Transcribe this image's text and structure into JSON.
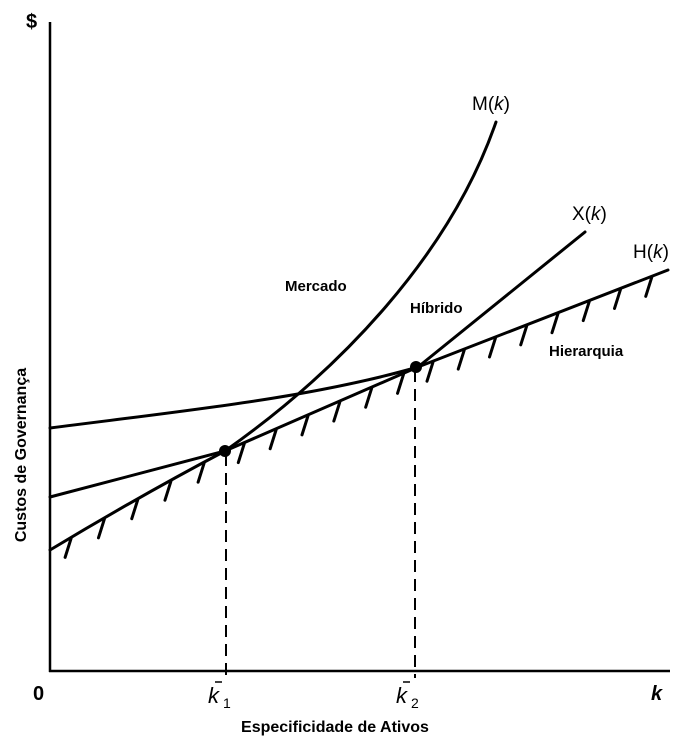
{
  "axes": {
    "y_symbol": "$",
    "y_label": "Custos de Governança",
    "x_label": "Especificidade de Ativos",
    "origin": "0",
    "x_symbol": "k",
    "k1": "k",
    "k1_sub": "1",
    "k2": "k",
    "k2_sub": "2"
  },
  "curves": {
    "market": {
      "name": "M(",
      "var": "k",
      "close": ")",
      "label": "Mercado"
    },
    "hybrid": {
      "name": "X(",
      "var": "k",
      "close": ")",
      "label": "Híbrido"
    },
    "hierarchy": {
      "name": "H(",
      "var": "k",
      "close": ")",
      "label": "Hierarquia"
    }
  }
}
